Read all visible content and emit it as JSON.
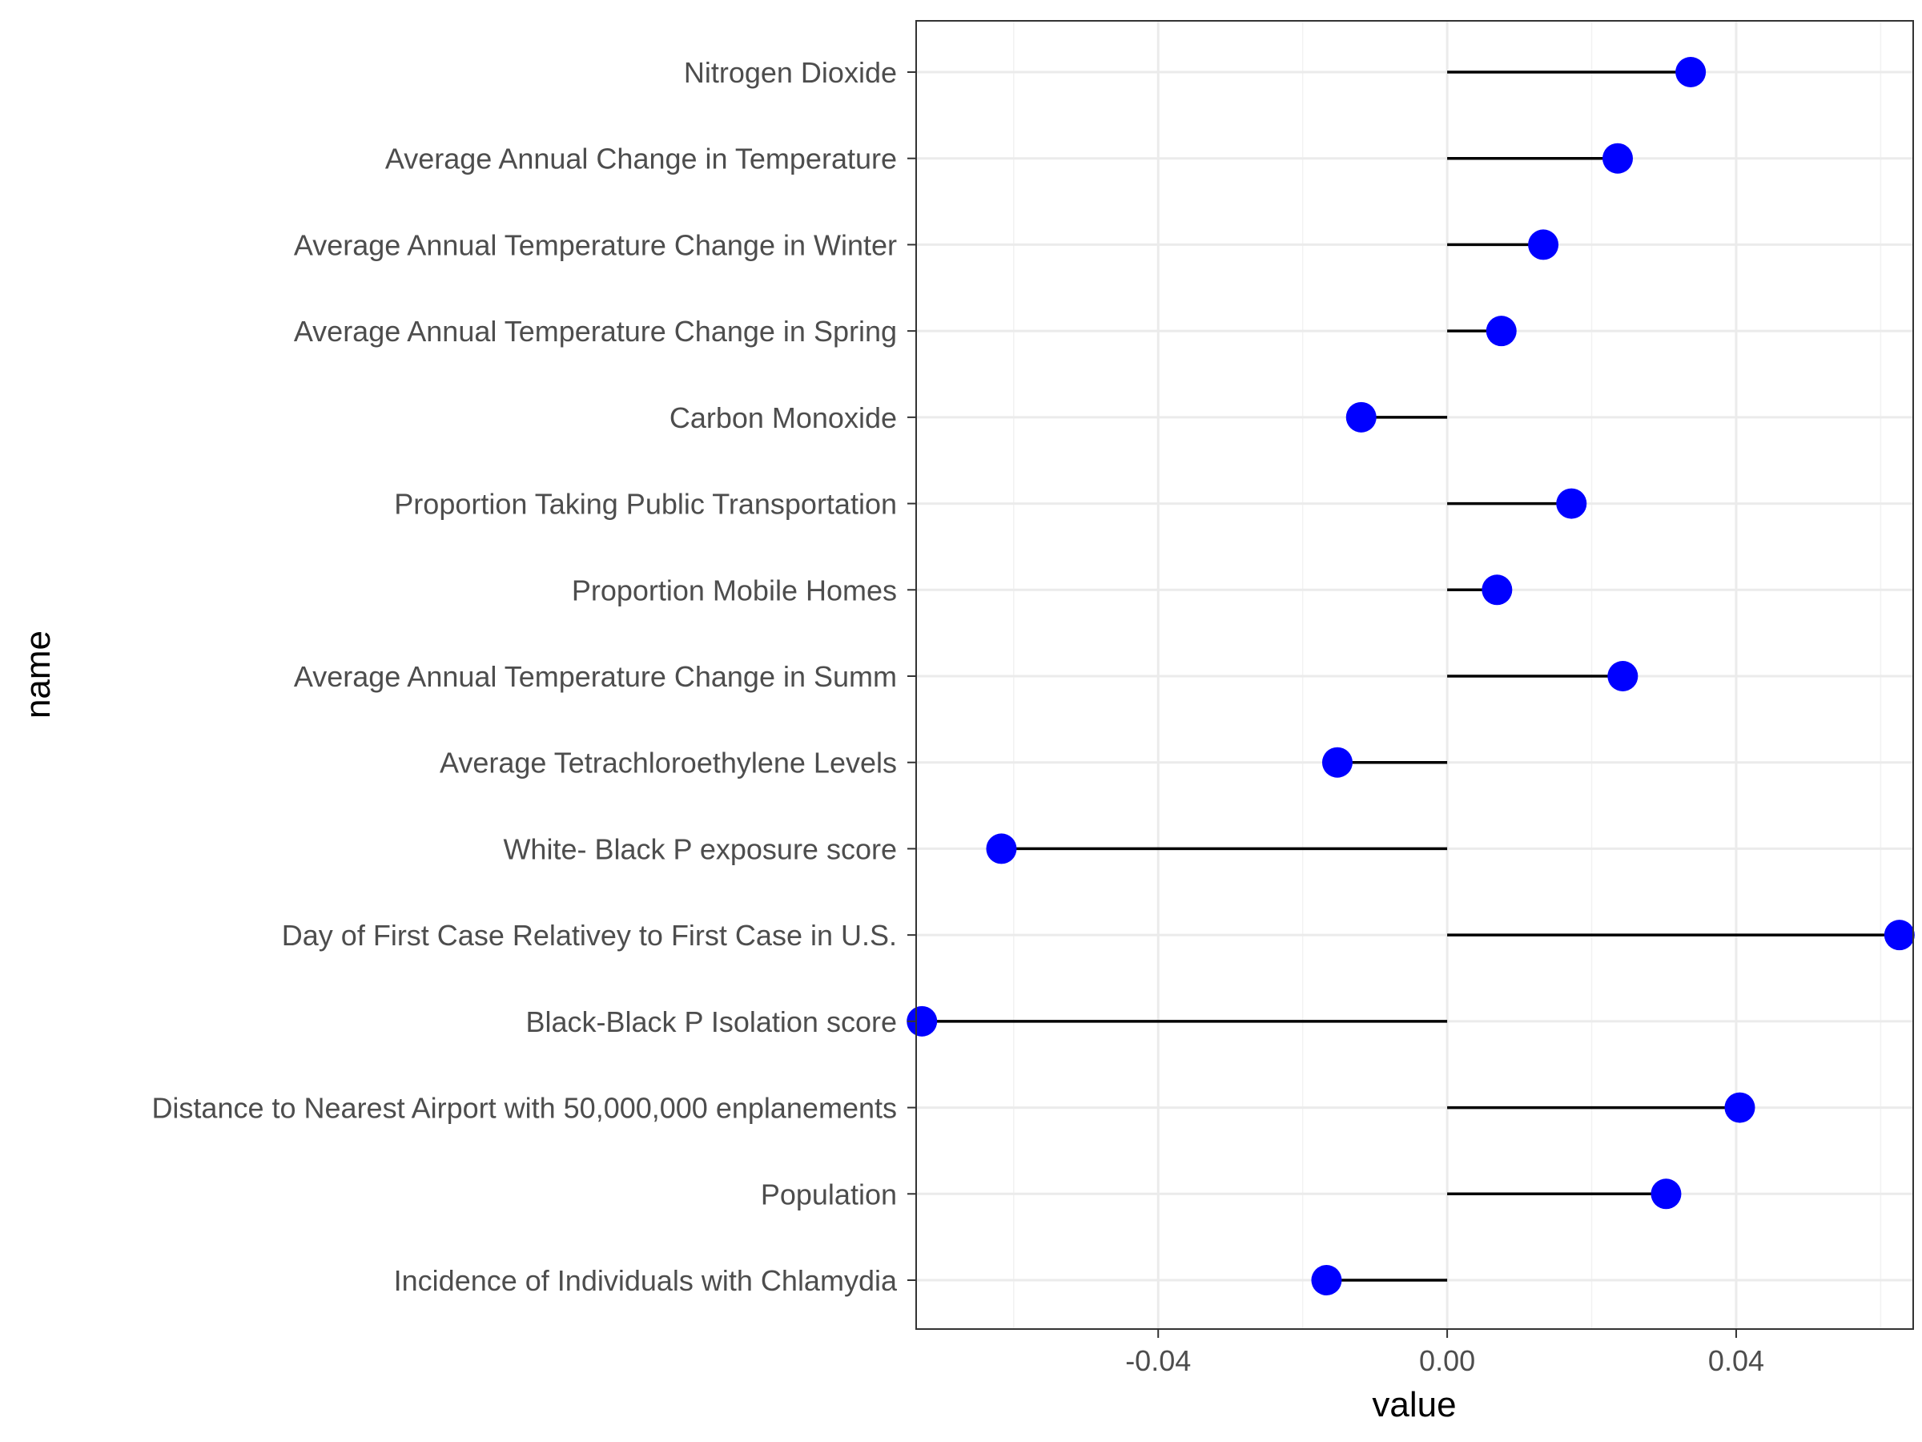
{
  "chart_data": {
    "type": "lollipop",
    "xlabel": "value",
    "ylabel": "name",
    "xlim": [
      -0.0735,
      0.0645
    ],
    "x_ticks": [
      -0.04,
      0.0,
      0.04
    ],
    "x_tick_labels": [
      "-0.04",
      "0.00",
      "0.04"
    ],
    "baseline": 0,
    "grid": true,
    "legend": "none",
    "colors": {
      "point": "#0000ff",
      "stem": "#000000",
      "grid_major": "#ebebeb",
      "grid_minor": "#f2f2f2",
      "panel_border": "#333333"
    },
    "categories": [
      "Nitrogen Dioxide",
      "Average Annual Change in Temperature",
      "Average Annual Temperature Change in Winter",
      "Average Annual Temperature Change in Spring",
      "Carbon Monoxide",
      "Proportion Taking Public Transportation",
      "Proportion Mobile Homes",
      "Average Annual Temperature Change in Summ",
      "Average Tetrachloroethylene Levels",
      "White- Black P exposure score",
      "Day of First Case Relativey to First Case in U.S.",
      "Black-Black P Isolation score",
      "Distance to Nearest Airport with 50,000,000 enplanements",
      "Population",
      "Incidence of Individuals with Chlamydia"
    ],
    "values": [
      0.0337,
      0.0236,
      0.0133,
      0.0075,
      -0.0119,
      0.0172,
      0.0069,
      0.0243,
      -0.0152,
      -0.0617,
      0.0626,
      -0.0727,
      0.0405,
      0.0303,
      -0.0167
    ]
  }
}
